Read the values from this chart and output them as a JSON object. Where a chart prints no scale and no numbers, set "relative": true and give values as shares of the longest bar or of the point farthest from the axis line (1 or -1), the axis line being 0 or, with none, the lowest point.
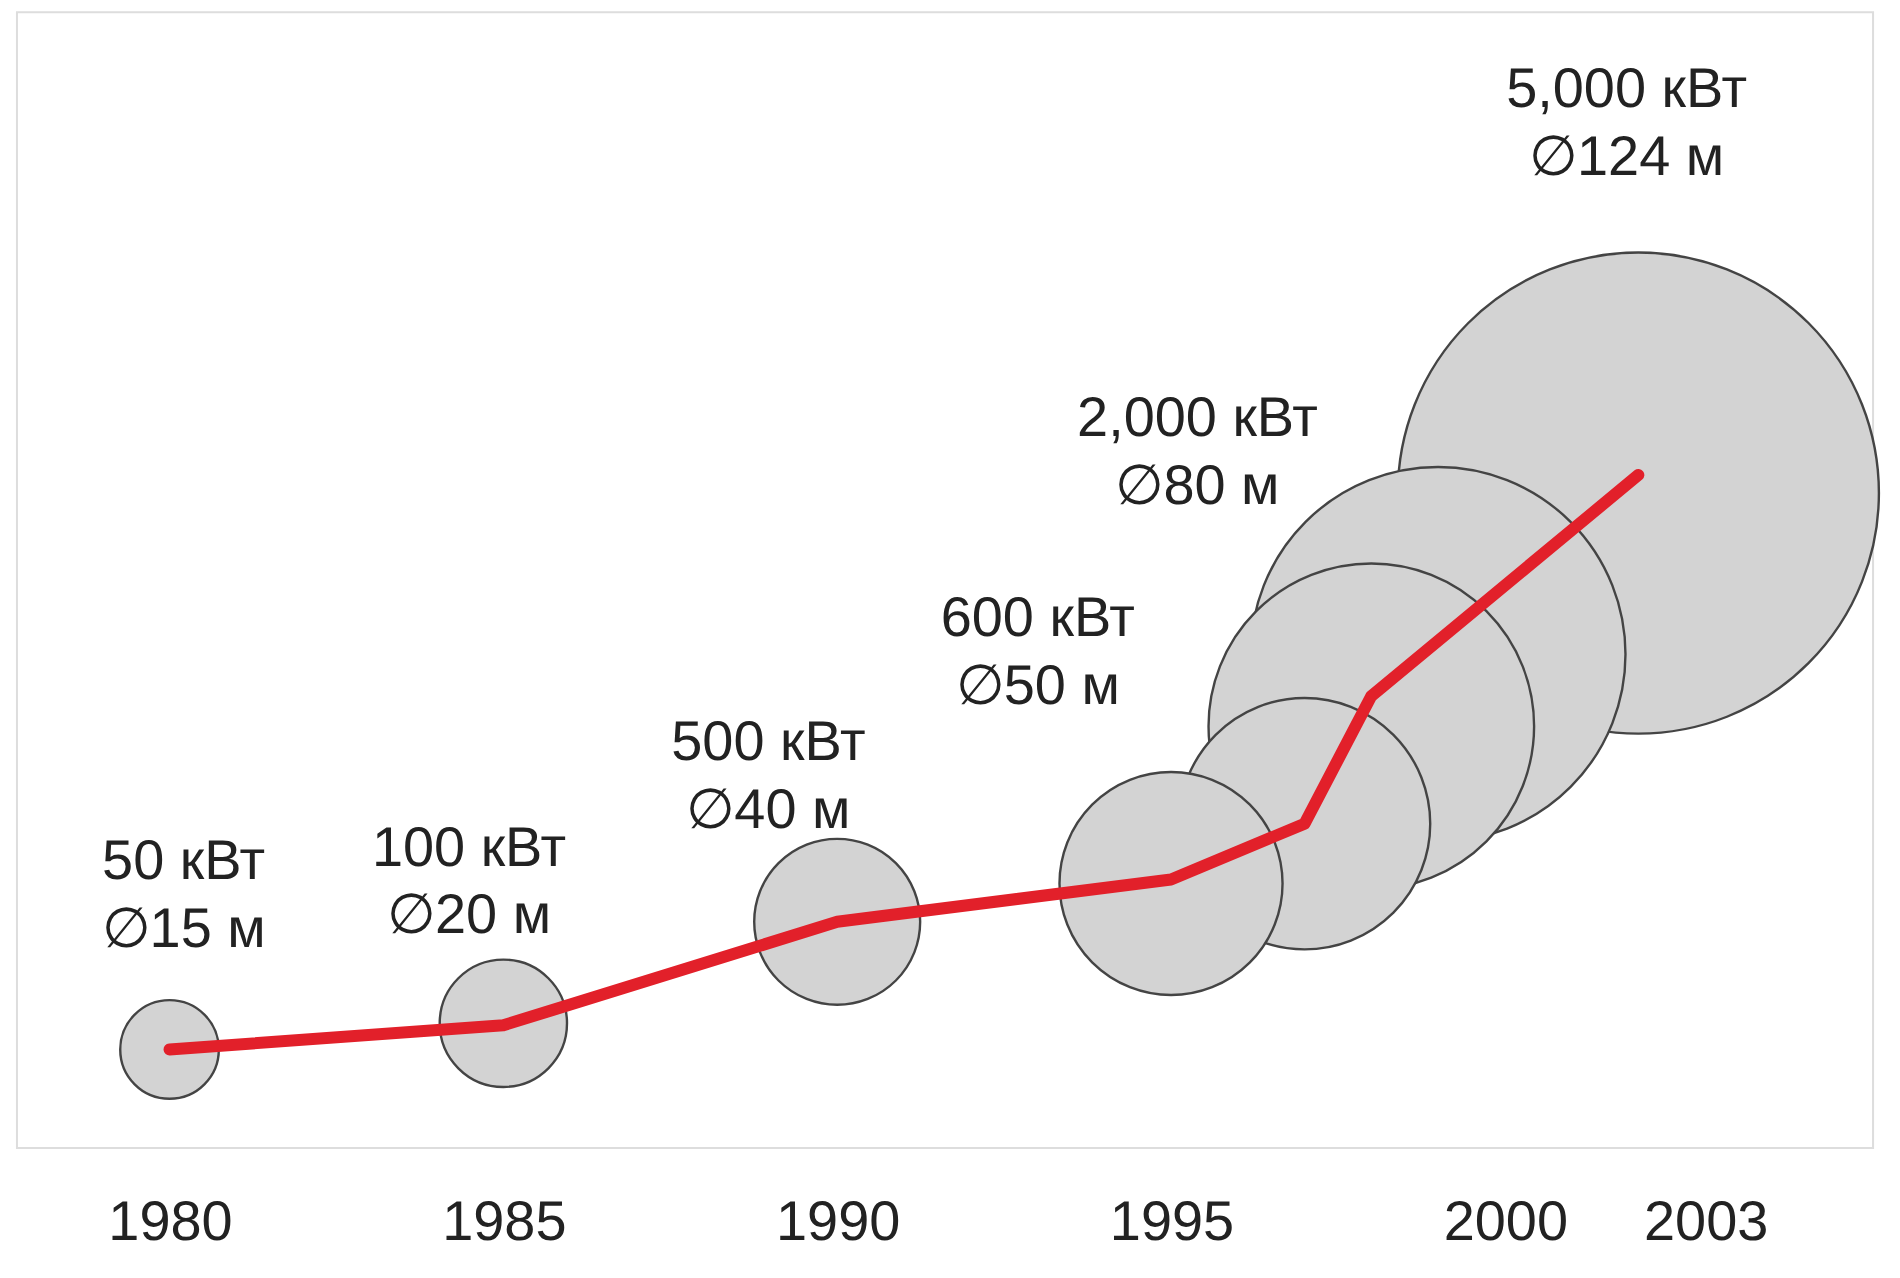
{
  "chart_data": {
    "type": "bubble",
    "relative": true,
    "xlim": [
      1977.7,
      2005.5
    ],
    "xticks": [
      1980,
      1985,
      1990,
      1995,
      2000,
      2003
    ],
    "grid": false,
    "legend": false,
    "series": [
      {
        "color": "#d3d3d3",
        "x": [
          1980,
          1985,
          1990,
          1995,
          1997,
          1998,
          1999,
          2002
        ],
        "values": [
          0.145,
          0.184,
          0.335,
          0.392,
          0.481,
          0.626,
          0.733,
          0.973
        ],
        "sizes": [
          0.042,
          0.07,
          0.119,
          0.215,
          0.273,
          0.458,
          0.607,
          1
        ]
      },
      {
        "type": "line",
        "color": "#e2202a",
        "x": [
          1980,
          1985,
          1990,
          1995,
          1997,
          1998,
          2002
        ],
        "values": [
          0.145,
          0.181,
          0.335,
          0.398,
          0.481,
          0.671,
          1.0
        ]
      }
    ],
    "annotations": [
      "50 кВт\n∅15 м",
      "100 кВт\n∅20 м",
      "500 кВт\n∅40 м",
      "600 кВт\n∅50 м",
      "2,000 кВт\n∅80 м",
      "5,000 кВт\n∅124 м"
    ]
  }
}
